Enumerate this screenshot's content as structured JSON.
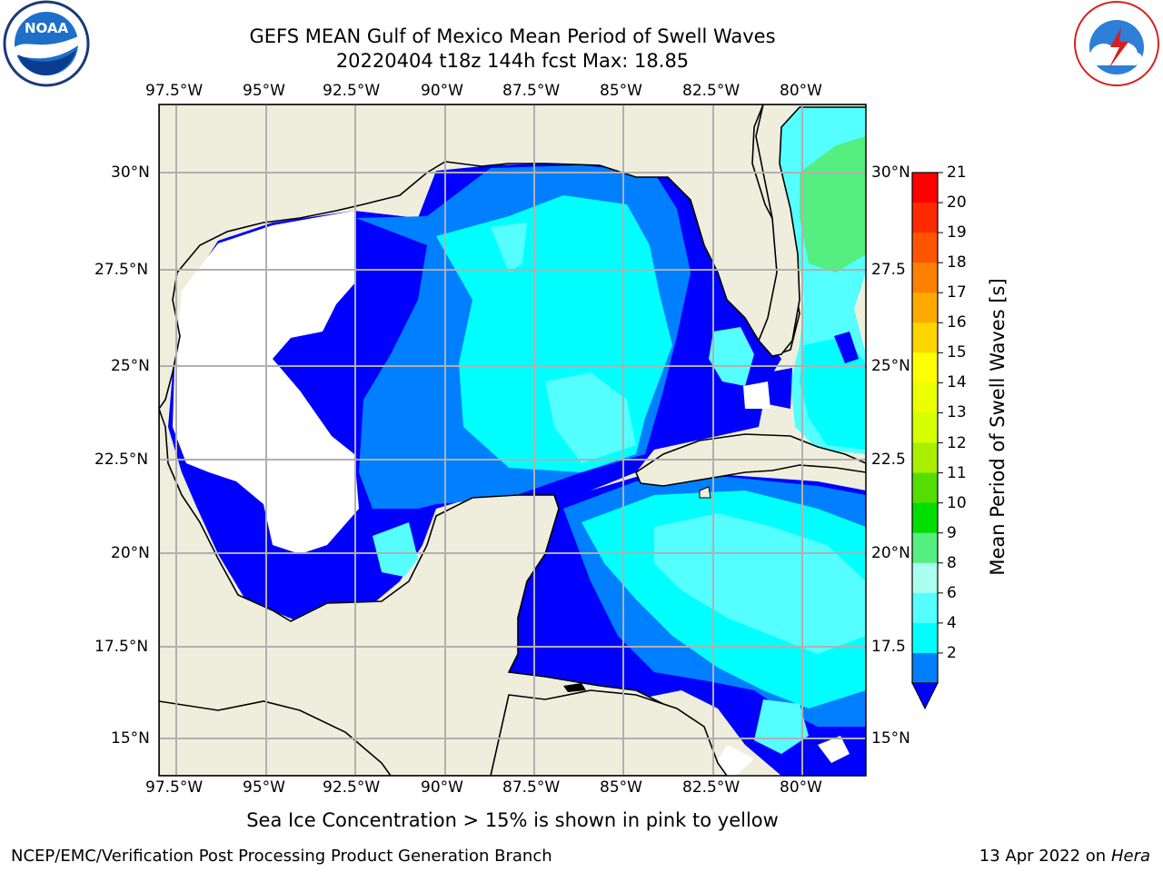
{
  "header": {
    "title_line1": "GEFS MEAN Gulf of Mexico Mean Period of Swell Waves",
    "title_line2": "20220404 t18z 144h fcst   Max: 18.85"
  },
  "logos": {
    "left": {
      "name": "noaa-logo",
      "text": "NOAA"
    },
    "right": {
      "name": "nws-logo",
      "text": "NATIONAL WEATHER SERVICE"
    }
  },
  "map": {
    "lon_ticks": [
      "97.5°W",
      "95°W",
      "92.5°W",
      "90°W",
      "87.5°W",
      "85°W",
      "82.5°W",
      "80°W"
    ],
    "lat_ticks_left": [
      "30°N",
      "27.5°N",
      "25°N",
      "22.5°N",
      "20°N",
      "17.5°N",
      "15°N"
    ],
    "lat_ticks_right": [
      "30°N",
      "27.5",
      "25°N",
      "22.5",
      "20°N",
      "17.5",
      "15°N"
    ],
    "colors": {
      "land": "#efeedd",
      "coast": "#000000",
      "grid": "#b0b0b0",
      "no_data": "#ffffff"
    }
  },
  "colorbar": {
    "title": "Mean Period of Swell Waves [s]",
    "labels": [
      "21",
      "20",
      "19",
      "18",
      "17",
      "16",
      "15",
      "14",
      "13",
      "12",
      "11",
      "10",
      "9",
      "8",
      "6",
      "4",
      "2"
    ],
    "colors": [
      "#ff0000",
      "#ff2a00",
      "#ff5500",
      "#ff8000",
      "#ffaa00",
      "#ffd500",
      "#ffff00",
      "#eaff00",
      "#d5ff00",
      "#aaee00",
      "#55dd00",
      "#00dd00",
      "#55ee80",
      "#aaffee",
      "#55ffff",
      "#00ffff",
      "#0080ff"
    ],
    "under_color": "#0000ff"
  },
  "bottom_note": "Sea Ice Concentration > 15% is shown in pink to yellow",
  "footer": {
    "left": "NCEP/EMC/Verification Post Processing Product Generation Branch",
    "right_prefix": "13 Apr 2022 on",
    "right_machine": "Hera"
  }
}
